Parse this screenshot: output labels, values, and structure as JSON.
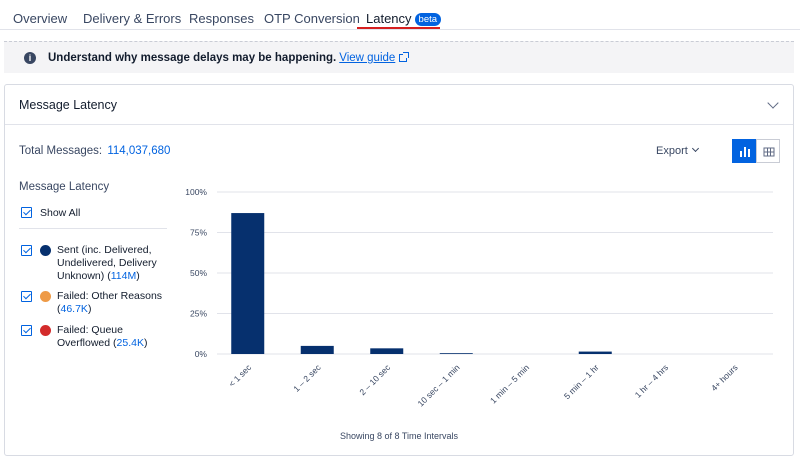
{
  "tabs": [
    {
      "label": "Overview"
    },
    {
      "label": "Delivery & Errors"
    },
    {
      "label": "Responses"
    },
    {
      "label": "OTP Conversion"
    },
    {
      "label": "Latency",
      "badge": "beta"
    }
  ],
  "banner": {
    "text": "Understand why message delays may be happening.",
    "link": "View guide"
  },
  "card": {
    "title": "Message Latency",
    "total_label": "Total Messages:",
    "total_value": "114,037,680",
    "export_label": "Export"
  },
  "legend": {
    "title": "Message Latency",
    "show_all": "Show All",
    "items": [
      {
        "label": "Sent (inc. Delivered, Undelivered, Delivery Unknown)",
        "count": "114M",
        "color": "#06306e"
      },
      {
        "label": "Failed: Other Reasons",
        "count": "46.7K",
        "color": "#ee9a46"
      },
      {
        "label": "Failed: Queue Overflowed",
        "count": "25.4K",
        "color": "#d32b2b"
      }
    ]
  },
  "chart_data": {
    "type": "bar",
    "categories": [
      "< 1 sec",
      "1 – 2 sec",
      "2 – 10 sec",
      "10 sec – 1 min",
      "1 min – 5 min",
      "5 min – 1 hr",
      "1 hr – 4 hrs",
      "4+ hours"
    ],
    "series": [
      {
        "name": "Sent (inc. Delivered, Undelivered, Delivery Unknown)",
        "values": [
          87,
          5,
          3.5,
          0.5,
          0,
          1.5,
          0,
          0
        ]
      }
    ],
    "y_ticks": [
      "0%",
      "25%",
      "50%",
      "75%",
      "100%"
    ],
    "ylim": [
      0,
      100
    ],
    "bar_color": "#06306e",
    "grid": true
  },
  "footer": "Showing 8 of 8 Time Intervals"
}
